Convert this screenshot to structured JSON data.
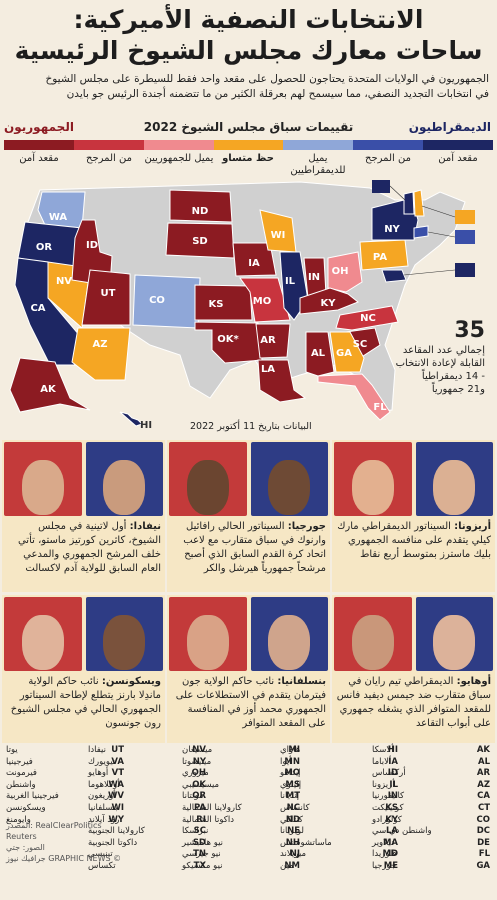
{
  "title_line1": "الانتخابات النصفية الأميركية:",
  "title_line2": "ساحات معارك مجلس الشيوخ الرئيسية",
  "intro_line1": "الجمهوريون في الولايات المتحدة يحتاجون للحصول على مقعد واحد فقط للسيطرة على مجلس الشيوخ",
  "intro_line2": "في انتخابات التجديد النصفي، مما سيسمح لهم بعرقلة الكثير من ما تتضمنه أجندة الرئيس جو بايدن",
  "legend": {
    "title": "تقييمات سباق مجلس الشيوخ 2022",
    "republicans": "الجمهوريون",
    "democrats": "الديمقراطيون",
    "cat_safe_r": "مقعد آمن",
    "cat_likely_r": "من المرجح",
    "cat_lean_r": "يميل للجمهوريين",
    "cat_tossup": "حظ متساو",
    "cat_lean_d": "يميل للديمقراطيين",
    "cat_likely_d": "من المرجح",
    "cat_safe_d": "مقعد آمن"
  },
  "colors": {
    "safe_r": "#8c1b22",
    "likely_r": "#c8343e",
    "lean_r": "#f08a8f",
    "tossup": "#f5a623",
    "lean_d": "#8fa7d8",
    "likely_d": "#3a4fa8",
    "safe_d": "#1d2663",
    "none": "#d0d0d0"
  },
  "note": {
    "number": "35",
    "line1": "إجمالي عدد المقاعد",
    "line2": "القابلة لإعادة الانتخاب",
    "line3": "- 14 ديمقراطياً",
    "line4": "و21 جمهورياً"
  },
  "dateline": "البيانات بتاريخ 11 أكتوبر 2022",
  "map_labels": {
    "WA": "WA",
    "OR": "OR",
    "CA": "CA",
    "NV": "NV",
    "ID": "ID",
    "UT": "UT",
    "AZ": "AZ",
    "CO": "CO",
    "ND": "ND",
    "SD": "SD",
    "KS": "KS",
    "OK": "OK*",
    "IA": "IA",
    "MO": "MO",
    "AR": "AR",
    "LA": "LA",
    "WI": "WI",
    "IL": "IL",
    "IN": "IN",
    "OH": "OH",
    "KY": "KY",
    "PA": "PA",
    "NY": "NY",
    "VT": "VT",
    "NH": "NH",
    "CT": "CT",
    "MD": "MD",
    "NC": "NC",
    "SC": "SC",
    "GA": "GA",
    "AL": "AL",
    "FL": "FL",
    "AK": "AK",
    "HI": "HI"
  },
  "panels": {
    "nevada": {
      "name": "نيفادا:",
      "text": "أول لاتينية في مجلس الشيوخ، كاثرين كورتيز ماستو، تأتي خلف المرشح الجمهوري والمدعي العام السابق للولاية آدم لاكسالت"
    },
    "georgia": {
      "name": "جورجيا:",
      "text": "السيناتور الحالي رافائيل وارنوك في سباق متقارب مع لاعب اتحاد كرة القدم السابق الذي أصبح مرشحاً جمهورياً هيرشل والكر"
    },
    "arizona": {
      "name": "أريزونا:",
      "text": "السيناتور الديمقراطي مارك كيلي يتقدم على منافسه الجمهوري بليك ماسترز بمتوسط أربع نقاط"
    },
    "wisconsin": {
      "name": "ويسكونسن:",
      "text": "نائب حاكم الولاية ماندِلا بارنز يتطلع لإطاحة السيناتور الجمهوري الحالي في مجلس الشيوخ رون جونسون"
    },
    "pennsylvania": {
      "name": "بنسلفانيا:",
      "text": "نائب حاكم الولاية جون فيترمان يتقدم في الاستطلاعات على الجمهوري محمد أوز في المنافسة على المقعد المتوافر"
    },
    "ohio": {
      "name": "أوهايو:",
      "text": "الديمقراطي تيم رايان في سباق متقارب ضد جيمس ديفيد فانس للمقعد المتوافر الذي يشغله جمهوري على أبواب التقاعد"
    }
  },
  "abbreviations": [
    [
      [
        "AK",
        "ألاسكا"
      ],
      [
        "AL",
        "ألاباما"
      ],
      [
        "AR",
        "أركنساس"
      ],
      [
        "AZ",
        "أريزونا"
      ],
      [
        "CA",
        "كاليفورنيا"
      ],
      [
        "CT",
        "كونيتيكت"
      ],
      [
        "CO",
        "كولورادو"
      ],
      [
        "DC",
        "واشنطن دي سي"
      ],
      [
        "DE",
        "ديلاوير"
      ],
      [
        "FL",
        "فلوريدا"
      ],
      [
        "GA",
        "جورجيا"
      ]
    ],
    [
      [
        "HI",
        "هاواي"
      ],
      [
        "IA",
        "أيوا"
      ],
      [
        "ID",
        "إيداهو"
      ],
      [
        "IL",
        "إلينوي"
      ],
      [
        "IN",
        "إنديانا"
      ],
      [
        "KS",
        "كانساس"
      ],
      [
        "KY",
        "كنتاكي"
      ],
      [
        "LA",
        "لويزيانا"
      ],
      [
        "MA",
        "ماساتشوستس"
      ],
      [
        "MD",
        "ميريلاند"
      ],
      [
        "ME",
        "مين"
      ]
    ],
    [
      [
        "MI",
        "ميشيغان"
      ],
      [
        "MN",
        "مينيسوتا"
      ],
      [
        "MO",
        "ميزوري"
      ],
      [
        "MS",
        "ميسيسيبي"
      ],
      [
        "MT",
        "مونتانا"
      ],
      [
        "NC",
        "كارولاينا الشمالية"
      ],
      [
        "ND",
        "داكوتا الشمالية"
      ],
      [
        "NE",
        "نبراسكا"
      ],
      [
        "NH",
        "نيو هامبشير"
      ],
      [
        "NJ",
        "نيو جيرسي"
      ],
      [
        "NM",
        "نيو مكسيكو"
      ]
    ],
    [
      [
        "NV",
        "نيفادا"
      ],
      [
        "NY",
        "نيويورك"
      ],
      [
        "OH",
        "أوهايو"
      ],
      [
        "OK",
        "أوكلاهوما"
      ],
      [
        "OR",
        "أوريغون"
      ],
      [
        "PA",
        "بنسلفانيا"
      ],
      [
        "RI",
        "رود آيلاند"
      ],
      [
        "SC",
        "كارولاينا الجنوبية"
      ],
      [
        "SD",
        "داكوتا الجنوبية"
      ],
      [
        "TN",
        "تينيسي"
      ],
      [
        "TX",
        "تكساس"
      ]
    ],
    [
      [
        "UT",
        "يوتا"
      ],
      [
        "VA",
        "فيرجينيا"
      ],
      [
        "VT",
        "فيرمونت"
      ],
      [
        "WA",
        "واشنطن"
      ],
      [
        "WV",
        "فيرجينيا الغربية"
      ],
      [
        "WI",
        "ويسكونسن"
      ],
      [
        "WY",
        "وايومنغ"
      ]
    ]
  ],
  "sources": {
    "line1": "المصدر: RealClearPolitics",
    "line2": "Reuters",
    "line3": "الصور: جتي",
    "line4": "جرافيك نيوز GRAPHIC NEWS ©"
  }
}
